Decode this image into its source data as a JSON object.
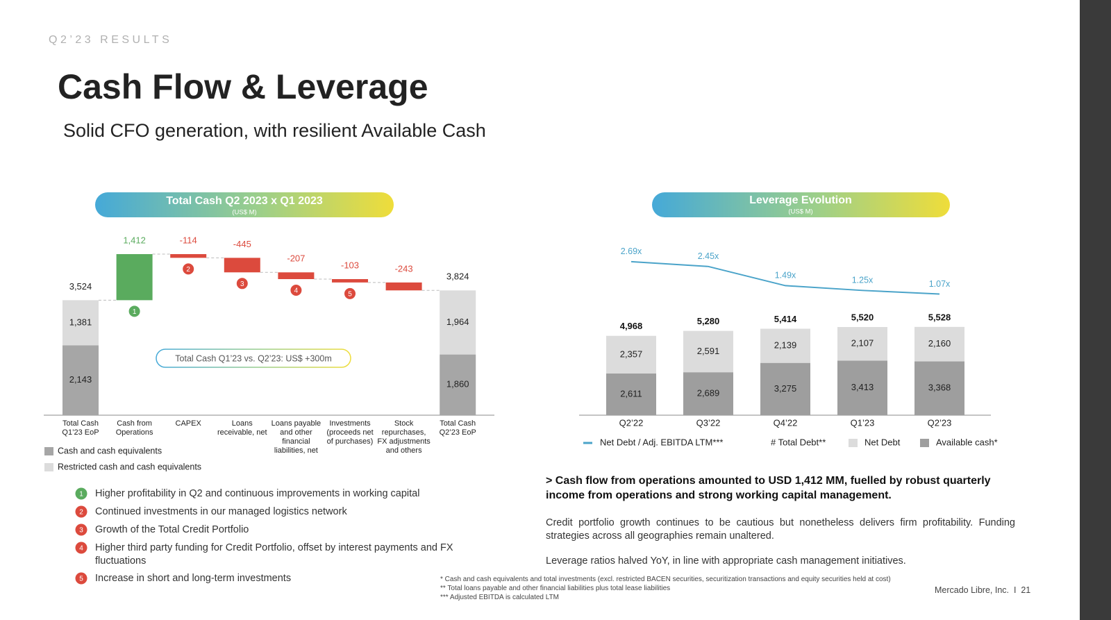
{
  "header": {
    "section": "Q2’23 RESULTS",
    "title": "Cash Flow & Leverage",
    "subtitle": "Solid CFO generation, with resilient Available Cash"
  },
  "chart_data": [
    {
      "type": "waterfall",
      "title": "Total Cash Q2 2023 x Q1 2023",
      "subtitle": "(US$ M)",
      "categories": [
        "Total Cash Q1’23 EoP",
        "Cash from Operations",
        "CAPEX",
        "Loans receivable, net",
        "Loans payable and other financial liabilities, net",
        "Investments (proceeds net of purchases)",
        "Stock repurchases, FX adjustments and others",
        "Total Cash Q2’23 EoP"
      ],
      "values": [
        3524,
        1412,
        -114,
        -445,
        -207,
        -103,
        -243,
        3824
      ],
      "value_labels": [
        "3,524",
        "1,412",
        "-114",
        "-445",
        "-207",
        "-103",
        "-243",
        "3,824"
      ],
      "markers": [
        null,
        "1",
        "2",
        "3",
        "4",
        "5",
        null,
        null
      ],
      "positive_color": "#5aab5e",
      "negative_color": "#dc4a3d",
      "stacks": [
        {
          "name": "Cash and cash equivalents",
          "color": "#a6a6a6",
          "values": [
            2143,
            null,
            null,
            null,
            null,
            null,
            null,
            1860
          ],
          "value_labels": [
            "2,143",
            null,
            null,
            null,
            null,
            null,
            null,
            "1,860"
          ]
        },
        {
          "name": "Restricted cash and cash equivalents",
          "color": "#dcdcdc",
          "values": [
            1381,
            null,
            null,
            null,
            null,
            null,
            null,
            1964
          ],
          "value_labels": [
            "1,381",
            null,
            null,
            null,
            null,
            null,
            null,
            "1,964"
          ]
        }
      ],
      "annotation": "Total Cash Q1’23 vs. Q2’23: US$ +300m",
      "ylim": [
        0,
        5000
      ]
    },
    {
      "type": "stacked_bar_line",
      "title": "Leverage Evolution",
      "subtitle": "(US$ M)",
      "categories": [
        "Q2’22",
        "Q3’22",
        "Q4’22",
        "Q1’23",
        "Q2’23"
      ],
      "series": [
        {
          "name": "Available cash*",
          "color": "#9e9e9e",
          "values": [
            2611,
            2689,
            3275,
            3413,
            3368
          ],
          "value_labels": [
            "2,611",
            "2,689",
            "3,275",
            "3,413",
            "3,368"
          ]
        },
        {
          "name": "Net Debt",
          "color": "#dcdcdc",
          "values": [
            2357,
            2591,
            2139,
            2107,
            2160
          ],
          "value_labels": [
            "2,357",
            "2,591",
            "2,139",
            "2,107",
            "2,160"
          ]
        }
      ],
      "totals": {
        "name": "# Total Debt**",
        "values": [
          4968,
          5280,
          5414,
          5520,
          5528
        ],
        "value_labels": [
          "4,968",
          "5,280",
          "5,414",
          "5,520",
          "5,528"
        ]
      },
      "line": {
        "name": "Net Debt / Adj. EBITDA LTM***",
        "color": "#4aa3c9",
        "axis": "y2",
        "values": [
          2.69,
          2.45,
          1.49,
          1.25,
          1.07
        ],
        "value_labels": [
          "2.69x",
          "2.45x",
          "1.49x",
          "1.25x",
          "1.07x"
        ]
      },
      "ylim": [
        0,
        10000
      ],
      "y2lim": [
        -5,
        3
      ]
    }
  ],
  "notes": [
    {
      "marker": "1",
      "color": "#5aab5e",
      "text": "Higher profitability in Q2 and continuous improvements in working capital"
    },
    {
      "marker": "2",
      "color": "#dc4a3d",
      "text": "Continued investments in our managed logistics network"
    },
    {
      "marker": "3",
      "color": "#dc4a3d",
      "text": "Growth of the Total Credit Portfolio"
    },
    {
      "marker": "4",
      "color": "#dc4a3d",
      "text": "Higher third party funding for Credit Portfolio, offset by interest payments and FX fluctuations"
    },
    {
      "marker": "5",
      "color": "#dc4a3d",
      "text": "Increase in short and long-term investments"
    }
  ],
  "commentary": {
    "highlight": "> Cash flow from operations amounted to USD 1,412 MM, fuelled by robust quarterly income from operations and strong working capital management.",
    "paragraphs": [
      "Credit portfolio growth continues to be cautious but nonetheless delivers firm profitability. Funding strategies across all geographies remain unaltered.",
      "Leverage ratios halved YoY, in line with appropriate cash management initiatives."
    ]
  },
  "footnotes": [
    "* Cash and cash equivalents and total investments (excl. restricted BACEN securities, securitization transactions and equity securities held at cost)",
    "** Total loans payable and other financial liabilities plus total lease liabilities",
    "*** Adjusted EBITDA is calculated LTM"
  ],
  "footer": "Mercado Libre, Inc.  I  21"
}
